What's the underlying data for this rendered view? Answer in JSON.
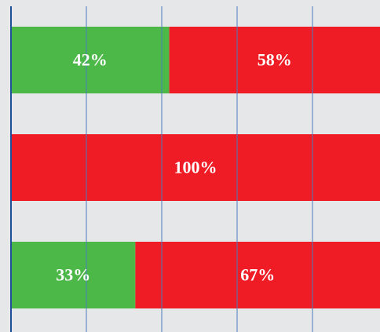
{
  "chart_data": {
    "type": "stacked-bar-horizontal",
    "series": [
      {
        "color": "#4cb848",
        "values": [
          42,
          0,
          33
        ],
        "value_labels": [
          "42%",
          null,
          "33%"
        ]
      },
      {
        "color": "#ef1c25",
        "values": [
          58,
          100,
          67
        ],
        "value_labels": [
          "58%",
          "100%",
          "67%"
        ]
      }
    ],
    "xlim": [
      0,
      100
    ],
    "xticks": [
      0,
      20,
      40,
      60,
      80
    ],
    "grid": true
  }
}
